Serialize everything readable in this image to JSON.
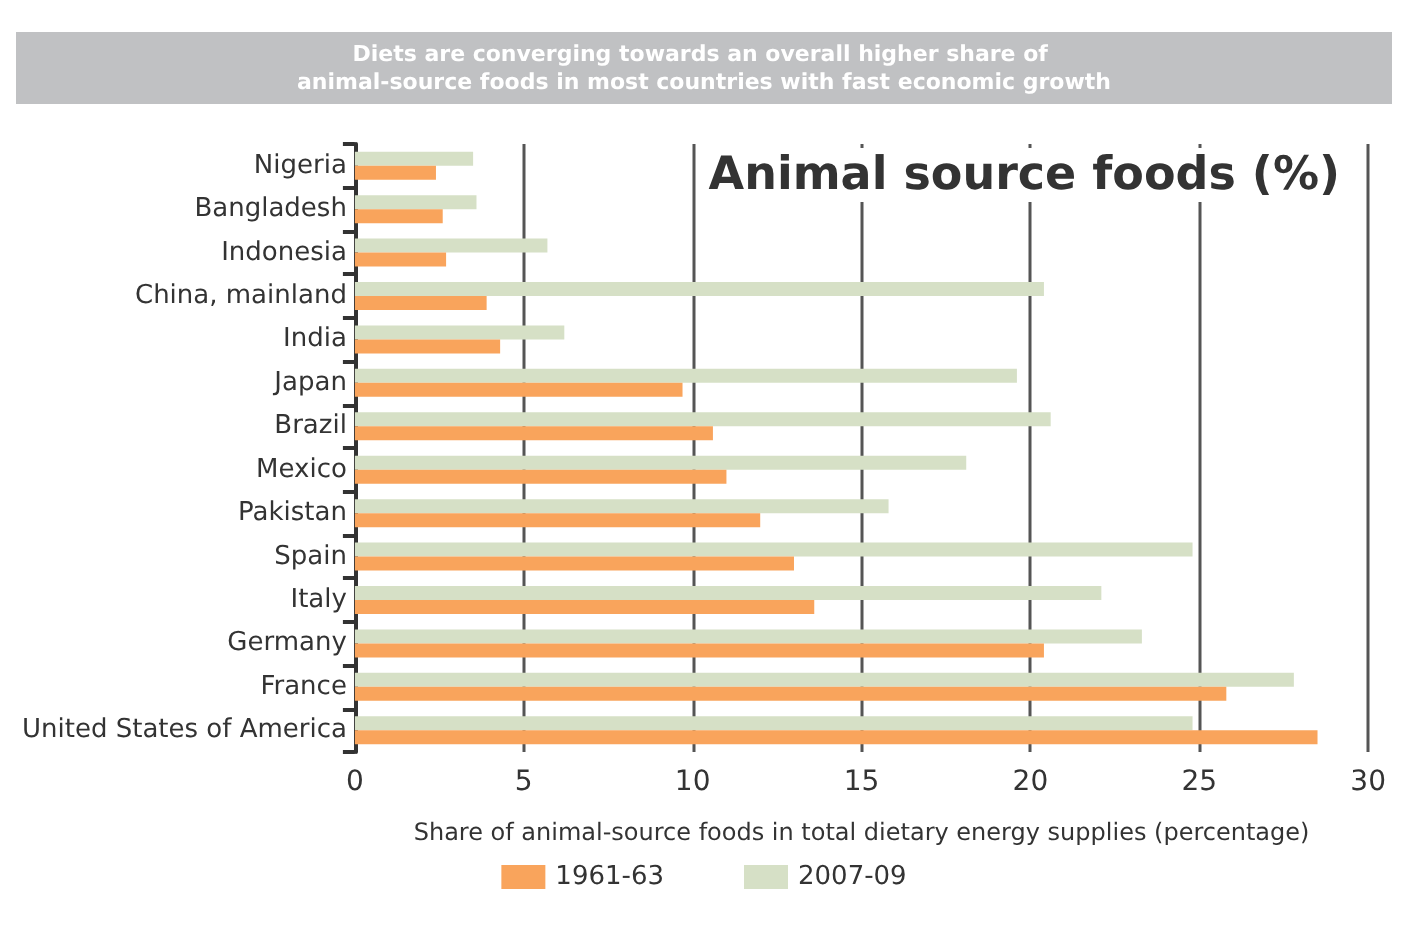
{
  "chart_data": {
    "type": "bar",
    "orientation": "horizontal",
    "title": "Diets are converging towards an overall higher share of animal-source foods in most countries with fast economic growth",
    "subtitle": "Animal source foods (%)",
    "xlabel": "Share of animal-source foods in total dietary energy supplies (percentage)",
    "categories": [
      "Nigeria",
      "Bangladesh",
      "Indonesia",
      "China, mainland",
      "India",
      "Japan",
      "Brazil",
      "Mexico",
      "Pakistan",
      "Spain",
      "Italy",
      "Germany",
      "France",
      "United States of America"
    ],
    "series": [
      {
        "name": "1961-63",
        "color": "#f9a45c",
        "values": [
          2.4,
          2.6,
          2.7,
          3.9,
          4.3,
          9.7,
          10.6,
          11.0,
          12.0,
          13.0,
          13.6,
          20.4,
          25.8,
          28.5
        ]
      },
      {
        "name": "2007-09",
        "color": "#d6e0c6",
        "values": [
          3.5,
          3.6,
          5.7,
          20.4,
          6.2,
          19.6,
          20.6,
          18.1,
          15.8,
          24.8,
          22.1,
          23.3,
          27.8,
          24.8
        ]
      }
    ],
    "xlim": [
      0,
      30
    ],
    "xticks": [
      0,
      5,
      10,
      15,
      20,
      25,
      30
    ],
    "grid": "x",
    "legend": "bottom"
  }
}
